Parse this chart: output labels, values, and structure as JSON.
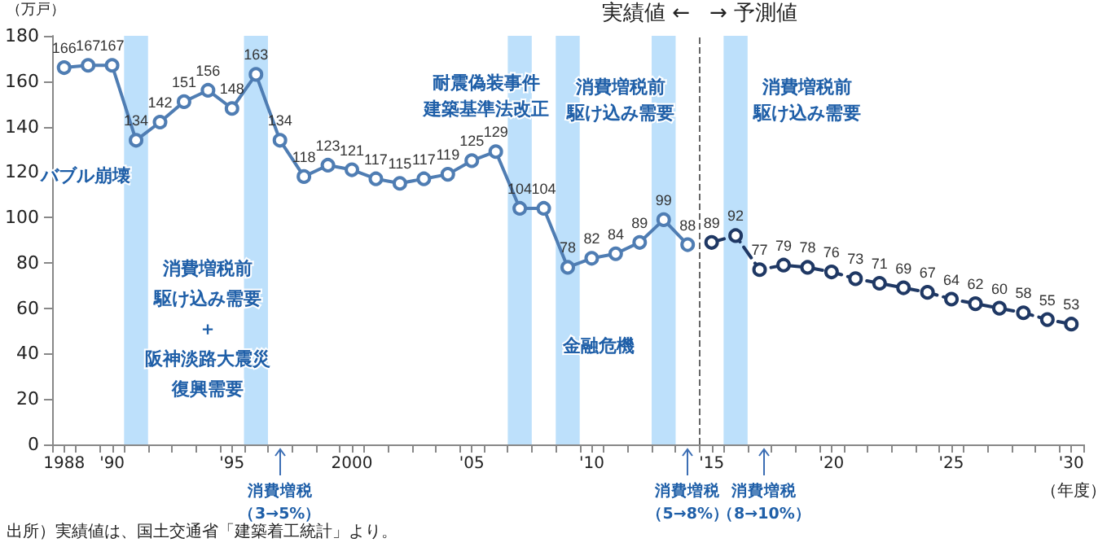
{
  "chart_data": {
    "type": "line",
    "ylabel": "（万戸）",
    "xlabel": "（年度）",
    "xlim": [
      1987.5,
      2030.5
    ],
    "ylim": [
      0,
      180
    ],
    "yticks": [
      0,
      20,
      40,
      60,
      80,
      100,
      120,
      140,
      160,
      180
    ],
    "xticks": [
      {
        "value": 1988,
        "label": "1988"
      },
      {
        "value": 1990,
        "label": "'90"
      },
      {
        "value": 1995,
        "label": "'95"
      },
      {
        "value": 2000,
        "label": "2000"
      },
      {
        "value": 2005,
        "label": "'05"
      },
      {
        "value": 2010,
        "label": "'10"
      },
      {
        "value": 2015,
        "label": "'15"
      },
      {
        "value": 2020,
        "label": "'20"
      },
      {
        "value": 2025,
        "label": "'25"
      },
      {
        "value": 2030,
        "label": "'30"
      },
      {
        "value": 1987.5,
        "label": null
      },
      {
        "value": 1988.5,
        "label": null
      },
      {
        "value": 1989.5,
        "label": null
      },
      {
        "value": 1990.5,
        "label": null
      },
      {
        "value": 1991.5,
        "label": null
      },
      {
        "value": 1992.5,
        "label": null
      },
      {
        "value": 1993.5,
        "label": null
      },
      {
        "value": 1994.5,
        "label": null
      },
      {
        "value": 1995.5,
        "label": null
      },
      {
        "value": 1996.5,
        "label": null
      },
      {
        "value": 1997.5,
        "label": null
      },
      {
        "value": 1998.5,
        "label": null
      },
      {
        "value": 1999.5,
        "label": null
      },
      {
        "value": 2000.5,
        "label": null
      },
      {
        "value": 2001.5,
        "label": null
      },
      {
        "value": 2002.5,
        "label": null
      },
      {
        "value": 2003.5,
        "label": null
      },
      {
        "value": 2004.5,
        "label": null
      },
      {
        "value": 2005.5,
        "label": null
      },
      {
        "value": 2006.5,
        "label": null
      },
      {
        "value": 2007.5,
        "label": null
      },
      {
        "value": 2008.5,
        "label": null
      },
      {
        "value": 2009.5,
        "label": null
      },
      {
        "value": 2010.5,
        "label": null
      },
      {
        "value": 2011.5,
        "label": null
      },
      {
        "value": 2012.5,
        "label": null
      },
      {
        "value": 2013.5,
        "label": null
      },
      {
        "value": 2014.5,
        "label": null
      },
      {
        "value": 2015.5,
        "label": null
      },
      {
        "value": 2016.5,
        "label": null
      },
      {
        "value": 2017.5,
        "label": null
      },
      {
        "value": 2018.5,
        "label": null
      },
      {
        "value": 2019.5,
        "label": null
      },
      {
        "value": 2020.5,
        "label": null
      },
      {
        "value": 2021.5,
        "label": null
      },
      {
        "value": 2022.5,
        "label": null
      },
      {
        "value": 2023.5,
        "label": null
      },
      {
        "value": 2024.5,
        "label": null
      },
      {
        "value": 2025.5,
        "label": null
      },
      {
        "value": 2026.5,
        "label": null
      },
      {
        "value": 2027.5,
        "label": null
      },
      {
        "value": 2028.5,
        "label": null
      },
      {
        "value": 2029.5,
        "label": null
      },
      {
        "value": 2030.5,
        "label": null
      }
    ],
    "series": [
      {
        "color": "#4f7db3",
        "line_style": "solid",
        "x": [
          1988,
          1989,
          1990,
          1991,
          1992,
          1993,
          1994,
          1995,
          1996,
          1997,
          1998,
          1999,
          2000,
          2001,
          2002,
          2003,
          2004,
          2005,
          2006,
          2007,
          2008,
          2009,
          2010,
          2011,
          2012,
          2013,
          2014
        ],
        "values": [
          166,
          167,
          167,
          134,
          142,
          151,
          156,
          148,
          163,
          134,
          118,
          123,
          121,
          117,
          115,
          117,
          119,
          125,
          129,
          104,
          104,
          78,
          82,
          84,
          89,
          99,
          88
        ]
      },
      {
        "color": "#1f3864",
        "line_style": "dashed",
        "x": [
          2015,
          2016,
          2017,
          2018,
          2019,
          2020,
          2021,
          2022,
          2023,
          2024,
          2025,
          2026,
          2027,
          2028,
          2029,
          2030
        ],
        "values": [
          89,
          92,
          77,
          79,
          78,
          76,
          73,
          71,
          69,
          67,
          64,
          62,
          60,
          58,
          55,
          53
        ]
      }
    ],
    "marker": "circle",
    "data_labels": true,
    "grid": false,
    "bands": [
      {
        "axis": "x",
        "from": 1990.5,
        "to": 1991.5,
        "label": "バブル崩壊",
        "color": "#bde0fb"
      },
      {
        "axis": "x",
        "from": 1995.5,
        "to": 1996.5,
        "label": "消費増税前駆け込み需要＋阪神淡路大震災復興需要",
        "color": "#bde0fb"
      },
      {
        "axis": "x",
        "from": 2006.5,
        "to": 2007.5,
        "label": "耐震偽装事件建築基準法改正",
        "color": "#bde0fb"
      },
      {
        "axis": "x",
        "from": 2008.5,
        "to": 2009.5,
        "label": "金融危機",
        "color": "#bde0fb"
      },
      {
        "axis": "x",
        "from": 2012.5,
        "to": 2013.5,
        "label": "消費増税前駆け込み需要",
        "color": "#bde0fb"
      },
      {
        "axis": "x",
        "from": 2015.5,
        "to": 2016.5,
        "label": "消費増税前駆け込み需要",
        "color": "#bde0fb"
      }
    ],
    "ref_lines": [
      {
        "axis": "x",
        "value": 2014.5,
        "line_style": "dashed",
        "color": "#666666"
      }
    ],
    "annotations": [
      "実績値 ←",
      "→ 予測値",
      "出所）実績値は、国土交通省「建築着工統計」より。",
      "消費増税（3→5%）",
      "消費増税（5→8%）",
      "消費増税（8→10%）"
    ]
  }
}
